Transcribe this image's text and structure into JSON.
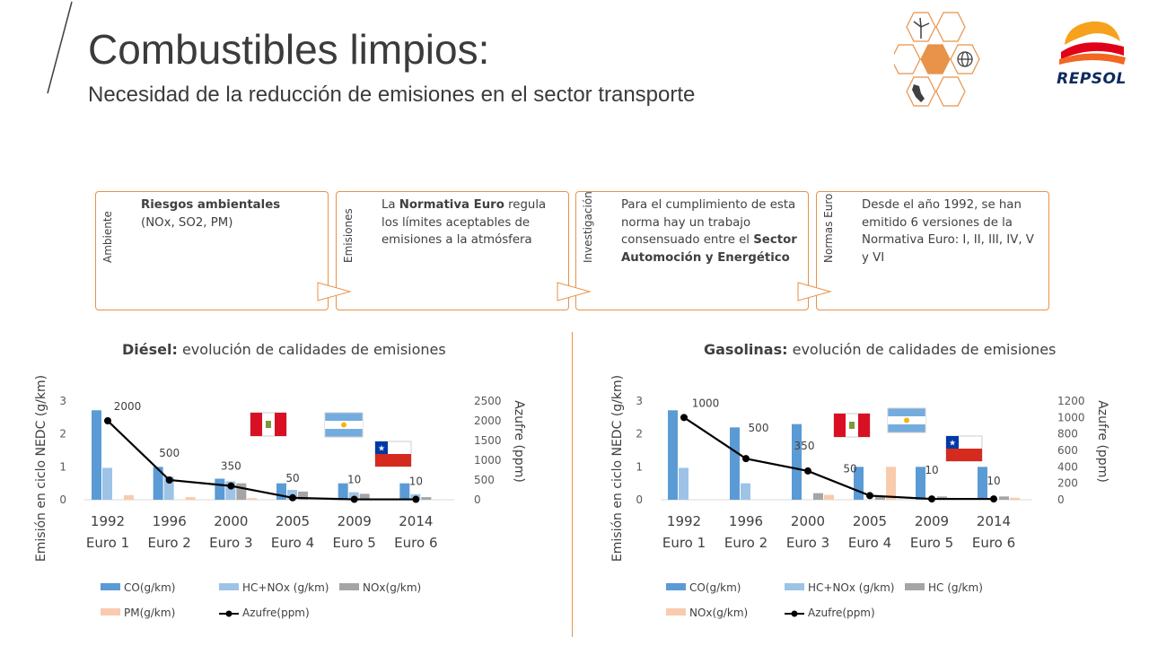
{
  "header": {
    "title": "Combustibles limpios:",
    "subtitle": "Necesidad de la reducción de emisiones en el sector transporte",
    "logo_text": "REPSOL"
  },
  "colors": {
    "accent": "#e8924a",
    "co": "#5b9bd5",
    "hc_nox": "#9dc3e6",
    "nox_hc": "#a5a5a5",
    "pm_nox": "#f8cbad",
    "sulfur": "#000000"
  },
  "boxes": [
    {
      "label": "Ambiente",
      "bold1": "Riesgos ambientales",
      "text1": " (NOx, SO2, PM)",
      "bold2": "",
      "text2": ""
    },
    {
      "label": "Emisiones",
      "text0": "La ",
      "bold1": "Normativa Euro",
      "text1": " regula los límites aceptables de emisiones a la atmósfera",
      "bold2": "",
      "text2": ""
    },
    {
      "label": "Investigación",
      "text0": "Para el cumplimiento de esta norma hay un trabajo consensuado entre el ",
      "bold1": "Sector Automoción y Energético",
      "text1": ""
    },
    {
      "label": "Normas Euro",
      "text0": "Desde el año 1992, se han emitido 6 versiones de la Normativa Euro: I, II, III, IV, V y VI"
    }
  ],
  "chart_data": [
    {
      "type": "bar",
      "title_bold": "Diésel:",
      "title": " evolución de calidades de emisiones",
      "ylabel": "Emisión en ciclo NEDC (g/km)",
      "y2label": "Azufre (ppm)",
      "ylim": [
        0,
        3
      ],
      "y_ticks": [
        "0",
        "1",
        "2",
        "3"
      ],
      "y2lim": [
        0,
        2500
      ],
      "y2_ticks": [
        "0",
        "500",
        "1000",
        "1500",
        "2000",
        "2500"
      ],
      "categories": [
        [
          "1992",
          "Euro 1"
        ],
        [
          "1996",
          "Euro 2"
        ],
        [
          "2000",
          "Euro 3"
        ],
        [
          "2005",
          "Euro 4"
        ],
        [
          "2009",
          "Euro 5"
        ],
        [
          "2014",
          "Euro 6"
        ]
      ],
      "series": [
        {
          "name": "CO(g/km)",
          "values": [
            2.72,
            1.0,
            0.64,
            0.5,
            0.5,
            0.5
          ]
        },
        {
          "name": "HC+NOx (g/km)",
          "values": [
            0.97,
            0.7,
            0.56,
            0.3,
            0.23,
            0.17
          ]
        },
        {
          "name": "NOx(g/km)",
          "values": [
            0,
            0,
            0.5,
            0.25,
            0.18,
            0.08
          ]
        },
        {
          "name": "PM(g/km)",
          "values": [
            0.14,
            0.08,
            0.05,
            0.025,
            0.005,
            0.005
          ]
        }
      ],
      "line": {
        "name": "Azufre(ppm)",
        "values": [
          2000,
          500,
          350,
          50,
          10,
          10
        ],
        "labels": [
          "2000",
          "500",
          "350",
          "50",
          "10",
          "10"
        ]
      },
      "legend": "bottom"
    },
    {
      "type": "bar",
      "title_bold": "Gasolinas:",
      "title": " evolución de calidades de emisiones",
      "ylabel": "Emisión en ciclo NEDC (g/km)",
      "y2label": "Azufre (ppm)",
      "ylim": [
        0,
        3
      ],
      "y_ticks": [
        "0",
        "1",
        "2",
        "3"
      ],
      "y2lim": [
        0,
        1200
      ],
      "y2_ticks": [
        "0",
        "200",
        "400",
        "600",
        "800",
        "1000",
        "1200"
      ],
      "categories": [
        [
          "1992",
          "Euro 1"
        ],
        [
          "1996",
          "Euro 2"
        ],
        [
          "2000",
          "Euro 3"
        ],
        [
          "2005",
          "Euro 4"
        ],
        [
          "2009",
          "Euro 5"
        ],
        [
          "2014",
          "Euro 6"
        ]
      ],
      "series": [
        {
          "name": "CO(g/km)",
          "values": [
            2.72,
            2.2,
            2.3,
            1.0,
            1.0,
            1.0
          ]
        },
        {
          "name": "HC+NOx (g/km)",
          "values": [
            0.97,
            0.5,
            0,
            0,
            0,
            0
          ]
        },
        {
          "name": "HC (g/km)",
          "values": [
            0,
            0,
            0.2,
            0.1,
            0.1,
            0.1
          ]
        },
        {
          "name": "NOx(g/km)",
          "values": [
            0,
            0,
            0.15,
            1.0,
            0.06,
            0.06
          ]
        }
      ],
      "line": {
        "name": "Azufre(ppm)",
        "values": [
          1000,
          500,
          350,
          50,
          10,
          10
        ],
        "labels": [
          "1000",
          "500",
          "350",
          "50",
          "10",
          "10"
        ]
      },
      "legend": "bottom"
    }
  ]
}
